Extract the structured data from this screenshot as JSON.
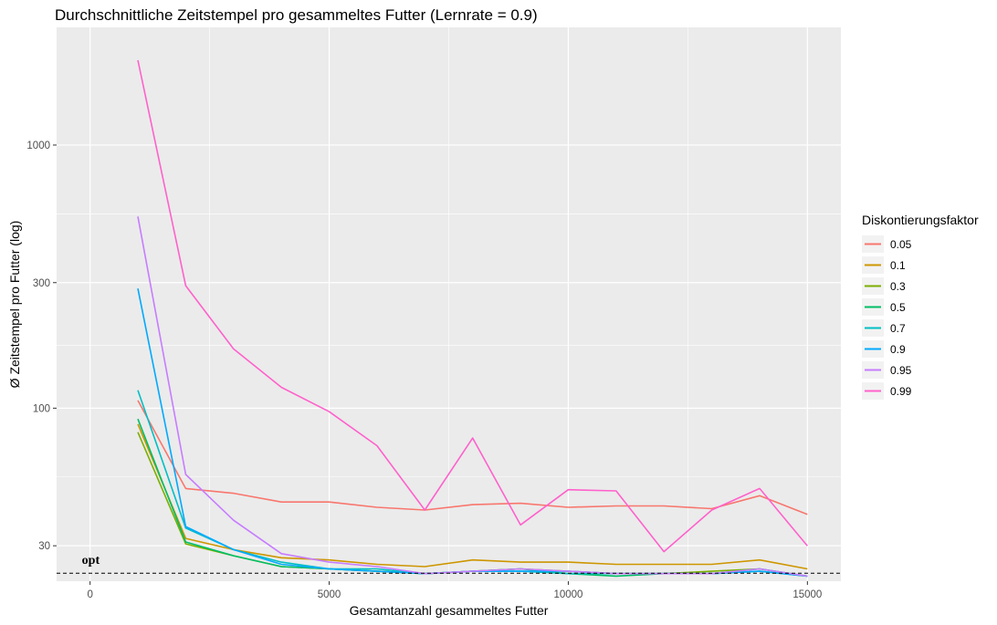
{
  "chart_data": {
    "type": "line",
    "title": "Durchschnittliche Zeitstempel pro gesammeltes Futter (Lernrate = 0.9)",
    "xlabel": "Gesamtanzahl gesammeltes Futter",
    "ylabel": "Ø Zeitstempel pro Futter (log)",
    "xlim": [
      -700,
      15700
    ],
    "ylim": [
      22,
      2800
    ],
    "yscale": "log",
    "xticks": [
      0,
      5000,
      10000,
      15000
    ],
    "xtick_labels": [
      "0",
      "5000",
      "10000",
      "15000"
    ],
    "yticks": [
      30,
      100,
      300,
      1000
    ],
    "ytick_labels": [
      "30",
      "100",
      "300",
      "1000"
    ],
    "grid": true,
    "background": "#ebebeb",
    "legend": {
      "title": "Diskontierungsfaktor",
      "position": "right"
    },
    "x": [
      1000,
      2000,
      3000,
      4000,
      5000,
      6000,
      7000,
      8000,
      9000,
      10000,
      11000,
      12000,
      13000,
      14000,
      15000
    ],
    "series": [
      {
        "name": "0.05",
        "color": "#F8766D",
        "values": [
          107,
          49.5,
          47.5,
          44,
          44,
          42,
          41,
          43,
          43.5,
          42,
          42.5,
          42.5,
          41.5,
          46.5,
          39.5
        ]
      },
      {
        "name": "0.1",
        "color": "#CD9600",
        "values": [
          87,
          32,
          29,
          27,
          26.5,
          25.5,
          25,
          26.5,
          26,
          26,
          25.5,
          25.5,
          25.5,
          26.5,
          24.5
        ]
      },
      {
        "name": "0.3",
        "color": "#7CAE00",
        "values": [
          81,
          30.5,
          27.5,
          25,
          24.5,
          24,
          23.5,
          24,
          24.5,
          24,
          23.5,
          23.5,
          24,
          24.5,
          23
        ]
      },
      {
        "name": "0.5",
        "color": "#00BE67",
        "values": [
          91,
          31,
          27.5,
          25,
          24.5,
          24,
          23.5,
          24,
          24.5,
          23.5,
          23,
          23.5,
          23.5,
          24,
          23
        ]
      },
      {
        "name": "0.7",
        "color": "#00BFC4",
        "values": [
          117,
          35,
          29,
          26,
          24.5,
          24.5,
          23.5,
          24,
          24,
          23.5,
          23.5,
          23.5,
          23.5,
          24.5,
          23
        ]
      },
      {
        "name": "0.9",
        "color": "#00A9FF",
        "values": [
          285,
          35.5,
          29,
          25.5,
          24.5,
          24,
          23.5,
          24,
          24,
          24,
          23.5,
          23.5,
          23.5,
          24,
          23
        ]
      },
      {
        "name": "0.95",
        "color": "#C77CFF",
        "values": [
          535,
          56,
          37.5,
          28,
          26,
          25,
          23.5,
          24,
          24.5,
          24,
          23.5,
          23.5,
          23.5,
          24.5,
          23
        ]
      },
      {
        "name": "0.99",
        "color": "#FF61CC",
        "values": [
          2100,
          292,
          168,
          120,
          97,
          72,
          41,
          77,
          36,
          49,
          48.5,
          28.5,
          41,
          49.5,
          30
        ]
      }
    ],
    "reference_line": {
      "y": 23.6,
      "style": "dashed",
      "label": "opt",
      "label_x": 0
    }
  }
}
